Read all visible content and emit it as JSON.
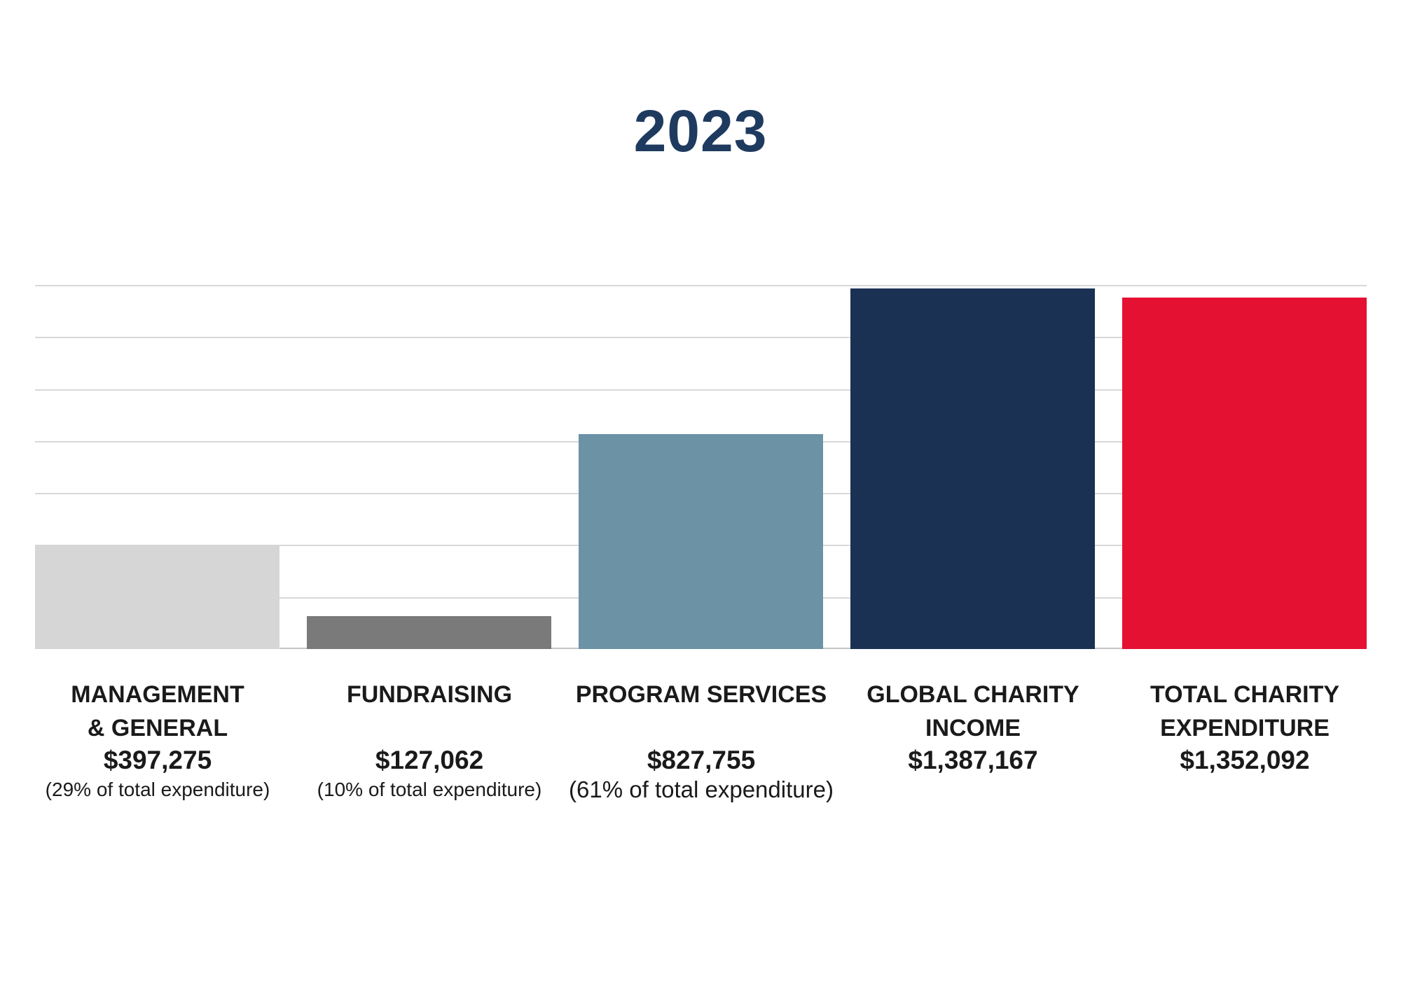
{
  "title": "2023",
  "colors": {
    "background": "#ffffff",
    "title_text": "#1e3a5f",
    "gridline": "#d8d8d8",
    "baseline": "#c4c4c4",
    "label_text": "#1a1a1a"
  },
  "chart_data": {
    "type": "bar",
    "title": "2023",
    "xlabel": "",
    "ylabel": "",
    "ylim": [
      0,
      1400000
    ],
    "gridline_interval": 200000,
    "grid": true,
    "legend": "none",
    "categories": [
      "MANAGEMENT & GENERAL",
      "FUNDRAISING",
      "PROGRAM SERVICES",
      "GLOBAL CHARITY INCOME",
      "TOTAL CHARITY EXPENDITURE"
    ],
    "bars": [
      {
        "id": "management-general",
        "label_lines": "MANAGEMENT\n& GENERAL",
        "amount": "$397,275",
        "value": 397275,
        "percent": "(29% of total expenditure)",
        "percent_large": false,
        "color": "#d6d6d6"
      },
      {
        "id": "fundraising",
        "label_lines": "FUNDRAISING",
        "amount": "$127,062",
        "value": 127062,
        "percent": "(10% of total expenditure)",
        "percent_large": false,
        "color": "#7a7a7a"
      },
      {
        "id": "program-services",
        "label_lines": "PROGRAM SERVICES",
        "amount": "$827,755",
        "value": 827755,
        "percent": "(61% of total expenditure)",
        "percent_large": true,
        "color": "#6c92a6"
      },
      {
        "id": "global-charity-income",
        "label_lines": "GLOBAL CHARITY\nINCOME",
        "amount": "$1,387,167",
        "value": 1387167,
        "percent": "",
        "percent_large": false,
        "color": "#1b3153"
      },
      {
        "id": "total-charity-expenditure",
        "label_lines": "TOTAL CHARITY\nEXPENDITURE",
        "amount": "$1,352,092",
        "value": 1352092,
        "percent": "",
        "percent_large": false,
        "color": "#e51132"
      }
    ]
  }
}
